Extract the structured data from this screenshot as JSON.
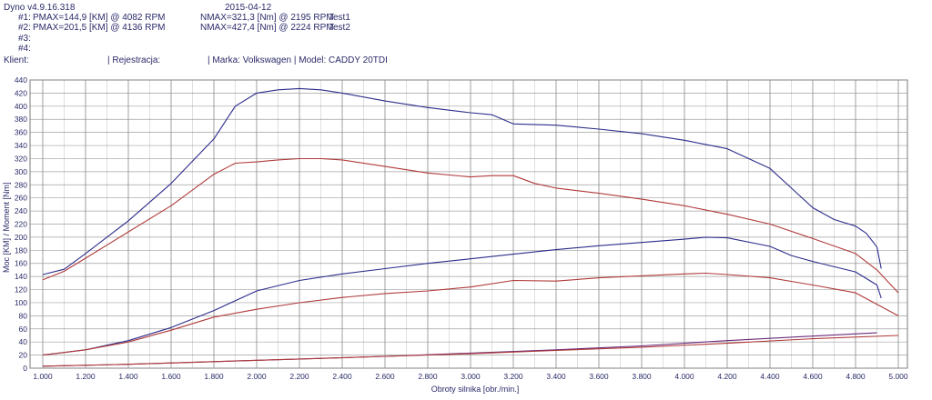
{
  "header": {
    "app_version": "Dyno v4.9.16.318",
    "date": "2015-04-12",
    "runs": [
      {
        "label": "#1:",
        "pmax": "PMAX=144,9 [KM] @ 4082 RPM",
        "nmax": "NMAX=321,3 [Nm] @ 2195 RPM",
        "test": "Test1"
      },
      {
        "label": "#2:",
        "pmax": "PMAX=201,5 [KM] @ 4136 RPM",
        "nmax": "NMAX=427,4 [Nm] @ 2224 RPM",
        "test": "Test2"
      },
      {
        "label": "#3:"
      },
      {
        "label": "#4:"
      }
    ],
    "client_label": "Klient:",
    "registration_label": "| Rejestracja:",
    "make_model": "| Marka: Volkswagen | Model: CADDY 20TDI"
  },
  "colors": {
    "test1": "#b03a3a",
    "test2": "#2c2c8c",
    "purple": "#6a2a7a",
    "grid": "#8a8a8a",
    "text": "#2a2a6a"
  },
  "chart_data": {
    "type": "line",
    "xlabel": "Obroty silnika [obr./min.]",
    "ylabel": "Moc [KM] / Moment [Nm]",
    "xlim": [
      1000,
      5000
    ],
    "ylim": [
      0,
      440
    ],
    "x_ticks": [
      1000,
      1200,
      1400,
      1600,
      1800,
      2000,
      2200,
      2400,
      2600,
      2800,
      3000,
      3200,
      3400,
      3600,
      3800,
      4000,
      4200,
      4400,
      4600,
      4800,
      5000
    ],
    "x_tick_labels": [
      "1.000",
      "1.200",
      "1.400",
      "1.600",
      "1.800",
      "2.000",
      "2.200",
      "2.400",
      "2.600",
      "2.800",
      "3.000",
      "3.200",
      "3.400",
      "3.600",
      "3.800",
      "4.000",
      "4.200",
      "4.400",
      "4.600",
      "4.800",
      "5.000"
    ],
    "y_ticks": [
      0,
      20,
      40,
      60,
      80,
      100,
      120,
      140,
      160,
      180,
      200,
      220,
      240,
      260,
      280,
      300,
      320,
      340,
      360,
      380,
      400,
      420,
      440
    ],
    "grid": true,
    "series": [
      {
        "color": "#2c2c8c",
        "x": [
          1000,
          1100,
          1200,
          1400,
          1600,
          1800,
          1900,
          2000,
          2100,
          2200,
          2300,
          2400,
          2600,
          2800,
          3000,
          3100,
          3200,
          3400,
          3600,
          3800,
          4000,
          4200,
          4400,
          4500,
          4600,
          4700,
          4800,
          4850,
          4900,
          4920
        ],
        "values": [
          143,
          151,
          175,
          225,
          282,
          350,
          400,
          420,
          425,
          427,
          425,
          420,
          408,
          398,
          390,
          387,
          373,
          371,
          365,
          358,
          348,
          335,
          305,
          275,
          245,
          227,
          217,
          206,
          185,
          152
        ]
      },
      {
        "color": "#b03a3a",
        "x": [
          1000,
          1100,
          1200,
          1400,
          1600,
          1800,
          1900,
          2000,
          2100,
          2200,
          2300,
          2400,
          2600,
          2800,
          3000,
          3100,
          3200,
          3300,
          3400,
          3600,
          3800,
          4000,
          4200,
          4400,
          4600,
          4800,
          4900,
          5000
        ],
        "values": [
          135,
          148,
          168,
          208,
          248,
          296,
          313,
          315,
          318,
          320,
          320,
          318,
          308,
          298,
          292,
          294,
          294,
          282,
          275,
          267,
          258,
          248,
          235,
          220,
          198,
          175,
          150,
          115
        ]
      },
      {
        "color": "#2c2c8c",
        "x": [
          1000,
          1200,
          1400,
          1600,
          1800,
          2000,
          2200,
          2400,
          2600,
          2800,
          3000,
          3200,
          3400,
          3600,
          3800,
          4000,
          4100,
          4200,
          4400,
          4500,
          4600,
          4800,
          4900,
          4920
        ],
        "values": [
          20,
          28,
          42,
          62,
          88,
          118,
          134,
          144,
          152,
          160,
          167,
          174,
          181,
          187,
          192,
          197,
          200,
          199,
          186,
          172,
          163,
          147,
          127,
          107
        ]
      },
      {
        "color": "#b03a3a",
        "x": [
          1000,
          1200,
          1400,
          1600,
          1800,
          2000,
          2200,
          2400,
          2600,
          2800,
          3000,
          3200,
          3400,
          3600,
          3800,
          4000,
          4100,
          4200,
          4400,
          4600,
          4800,
          5000
        ],
        "values": [
          20,
          28,
          40,
          58,
          78,
          90,
          100,
          108,
          114,
          118,
          124,
          134,
          133,
          138,
          141,
          144,
          145,
          143,
          138,
          127,
          115,
          80
        ]
      },
      {
        "color": "#6a2a7a",
        "x": [
          1000,
          1400,
          1800,
          2200,
          2600,
          3000,
          3400,
          3800,
          4200,
          4600,
          4900
        ],
        "values": [
          3,
          6,
          10,
          14,
          18,
          23,
          28,
          34,
          42,
          49,
          54
        ]
      },
      {
        "color": "#b03a3a",
        "x": [
          1000,
          1400,
          1800,
          2200,
          2600,
          3000,
          3400,
          3800,
          4200,
          4600,
          5000
        ],
        "values": [
          3,
          6,
          10,
          14,
          18,
          22,
          27,
          32,
          38,
          45,
          50
        ]
      }
    ]
  }
}
